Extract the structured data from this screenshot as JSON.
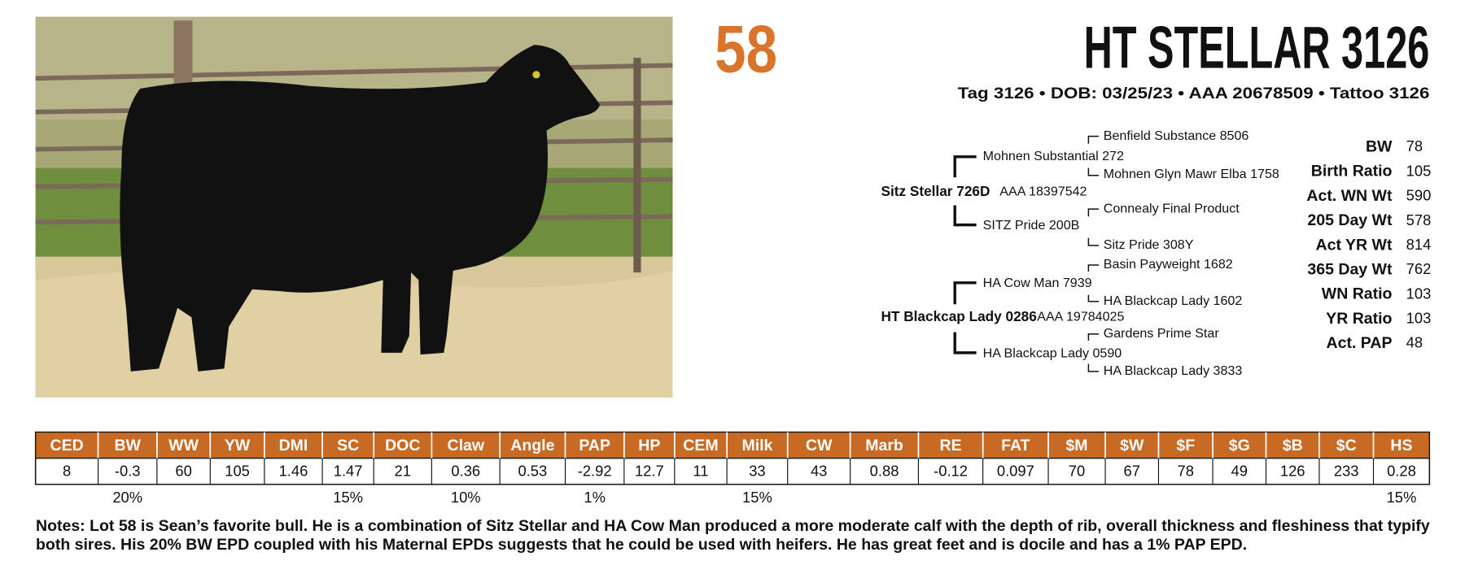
{
  "lot": "58",
  "header": {
    "title": "HT STELLAR 3126",
    "subtitle": "Tag 3126 • DOB: 03/25/23 • AAA 20678509 • Tattoo 3126"
  },
  "pedigree": {
    "sire": {
      "name": "Sitz Stellar 726D",
      "registration": "AAA 18397542"
    },
    "sire_sire": "Mohnen Substantial 272",
    "sire_sire_sire": "Benfield Substance 8506",
    "sire_sire_dam": "Mohnen Glyn Mawr Elba 1758",
    "sire_dam": "SITZ Pride 200B",
    "sire_dam_sire": "Connealy Final Product",
    "sire_dam_dam": "Sitz Pride 308Y",
    "dam": {
      "name": "HT Blackcap Lady 0286",
      "registration": "AAA 19784025"
    },
    "dam_sire": "HA Cow Man 7939",
    "dam_sire_sire": "Basin Payweight 1682",
    "dam_sire_dam": "HA Blackcap Lady 1602",
    "dam_dam": "HA Blackcap Lady 0590",
    "dam_dam_sire": "Gardens Prime Star",
    "dam_dam_dam": "HA Blackcap Lady 3833"
  },
  "performance": [
    {
      "label": "BW",
      "value": "78"
    },
    {
      "label": "Birth Ratio",
      "value": "105"
    },
    {
      "label": "Act. WN Wt",
      "value": "590"
    },
    {
      "label": "205 Day Wt",
      "value": "578"
    },
    {
      "label": "Act YR Wt",
      "value": "814"
    },
    {
      "label": "365 Day Wt",
      "value": "762"
    },
    {
      "label": "WN Ratio",
      "value": "103"
    },
    {
      "label": "YR Ratio",
      "value": "103"
    },
    {
      "label": "Act. PAP",
      "value": "48"
    }
  ],
  "epd_table": {
    "headers": [
      "CED",
      "BW",
      "WW",
      "YW",
      "DMI",
      "SC",
      "DOC",
      "Claw",
      "Angle",
      "PAP",
      "HP",
      "CEM",
      "Milk",
      "CW",
      "Marb",
      "RE",
      "FAT",
      "$M",
      "$W",
      "$F",
      "$G",
      "$B",
      "$C",
      "HS"
    ],
    "values": [
      "8",
      "-0.3",
      "60",
      "105",
      "1.46",
      "1.47",
      "21",
      "0.36",
      "0.53",
      "-2.92",
      "12.7",
      "11",
      "33",
      "43",
      "0.88",
      "-0.12",
      "0.097",
      "70",
      "67",
      "78",
      "49",
      "126",
      "233",
      "0.28"
    ],
    "percentiles": [
      null,
      "20%",
      null,
      null,
      null,
      "15%",
      null,
      "10%",
      null,
      "1%",
      null,
      null,
      "15%",
      null,
      null,
      null,
      null,
      null,
      null,
      null,
      null,
      null,
      null,
      "15%"
    ]
  },
  "notes": "Notes: Lot 58 is Sean’s favorite bull. He is a combination of Sitz Stellar and HA Cow Man produced a more moderate calf with the depth of rib, overall thickness and fleshiness that typify both sires. His 20% BW EPD coupled with his Maternal EPDs suggests that he could be used with heifers. He has great feet and is docile and has a 1% PAP EPD."
}
